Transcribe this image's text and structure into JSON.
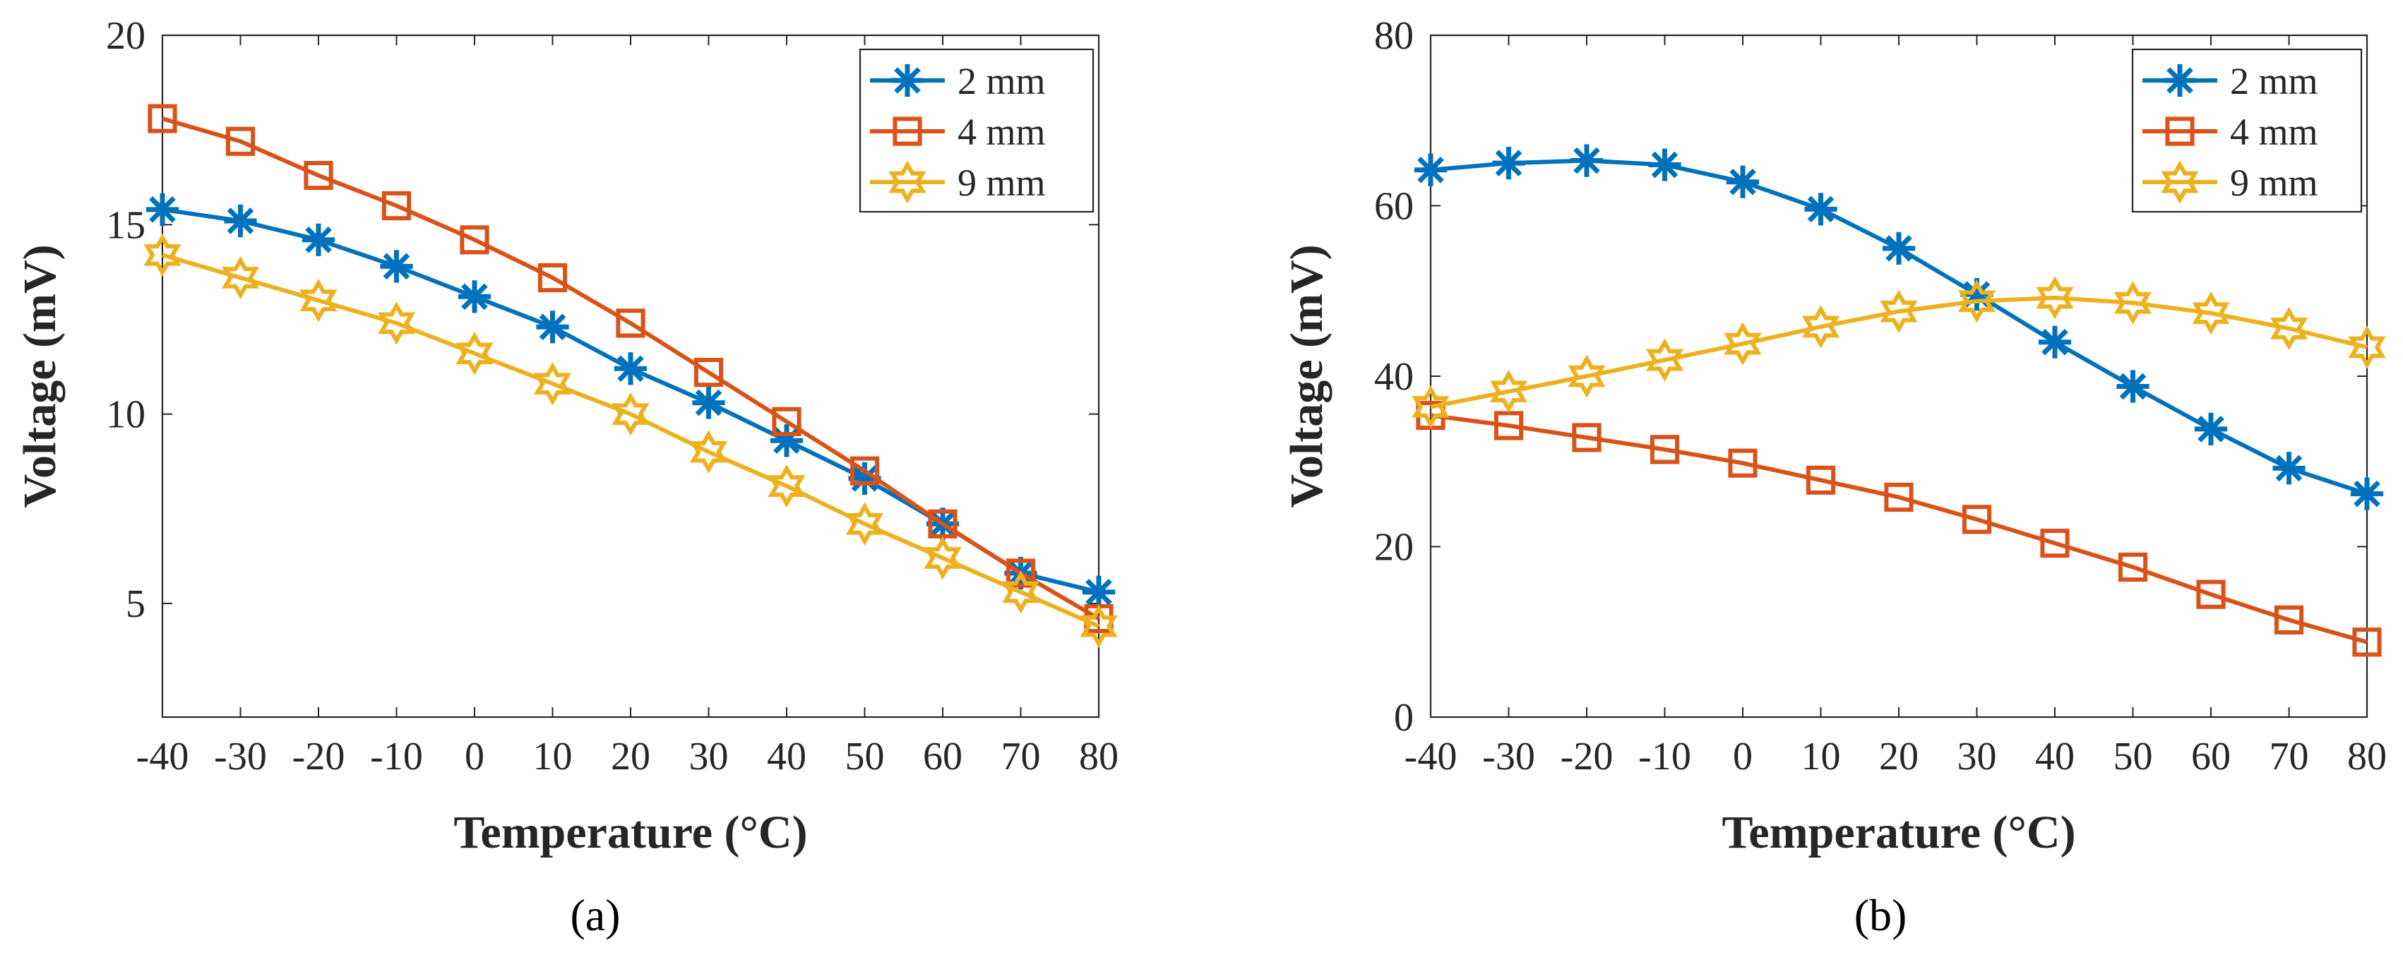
{
  "chart_data": [
    {
      "type": "line",
      "panel_label": "(a)",
      "xlabel": "Temperature (°C)",
      "ylabel": "Voltage (mV)",
      "x": [
        -40,
        -30,
        -20,
        -10,
        0,
        10,
        20,
        30,
        40,
        50,
        60,
        70,
        80
      ],
      "xticks": [
        "-40",
        "-30",
        "-20",
        "-10",
        "0",
        "10",
        "20",
        "30",
        "40",
        "50",
        "60",
        "70",
        "80"
      ],
      "xlim": [
        -40,
        80
      ],
      "ylim": [
        2,
        20
      ],
      "yticks": [
        "5",
        "10",
        "15",
        "20"
      ],
      "ytick_values": [
        5,
        10,
        15,
        20
      ],
      "legend_position": "top-right",
      "series": [
        {
          "name": "2 mm",
          "marker": "asterisk",
          "color": "#0072BD",
          "values": [
            15.4,
            15.1,
            14.6,
            13.9,
            13.1,
            12.3,
            11.2,
            10.3,
            9.3,
            8.3,
            7.1,
            5.8,
            5.3
          ]
        },
        {
          "name": "4 mm",
          "marker": "square",
          "color": "#D95319",
          "values": [
            17.8,
            17.2,
            16.3,
            15.5,
            14.6,
            13.6,
            12.4,
            11.1,
            9.8,
            8.5,
            7.1,
            5.8,
            4.6
          ]
        },
        {
          "name": "9 mm",
          "marker": "hexagram",
          "color": "#EDB120",
          "values": [
            14.2,
            13.6,
            13.0,
            12.4,
            11.6,
            10.8,
            10.0,
            9.0,
            8.1,
            7.1,
            6.2,
            5.3,
            4.4
          ]
        }
      ]
    },
    {
      "type": "line",
      "panel_label": "(b)",
      "xlabel": "Temperature (°C)",
      "ylabel": "Voltage (mV)",
      "x": [
        -40,
        -30,
        -20,
        -10,
        0,
        10,
        20,
        30,
        40,
        50,
        60,
        70,
        80
      ],
      "xticks": [
        "-40",
        "-30",
        "-20",
        "-10",
        "0",
        "10",
        "20",
        "30",
        "40",
        "50",
        "60",
        "70",
        "80"
      ],
      "xlim": [
        -40,
        80
      ],
      "ylim": [
        0,
        80
      ],
      "yticks": [
        "0",
        "20",
        "40",
        "60",
        "80"
      ],
      "ytick_values": [
        0,
        20,
        40,
        60,
        80
      ],
      "legend_position": "top-right",
      "series": [
        {
          "name": "2 mm",
          "marker": "asterisk",
          "color": "#0072BD",
          "values": [
            64.2,
            65.0,
            65.3,
            64.8,
            62.8,
            59.6,
            55.0,
            49.6,
            44.0,
            38.8,
            33.8,
            29.2,
            26.2
          ]
        },
        {
          "name": "4 mm",
          "marker": "square",
          "color": "#D95319",
          "values": [
            35.4,
            34.2,
            32.8,
            31.4,
            29.8,
            27.8,
            25.8,
            23.2,
            20.4,
            17.6,
            14.4,
            11.4,
            8.8
          ]
        },
        {
          "name": "9 mm",
          "marker": "hexagram",
          "color": "#EDB120",
          "values": [
            36.4,
            38.2,
            40.0,
            41.9,
            43.8,
            45.8,
            47.6,
            48.8,
            49.2,
            48.6,
            47.4,
            45.6,
            43.4
          ]
        }
      ]
    }
  ]
}
